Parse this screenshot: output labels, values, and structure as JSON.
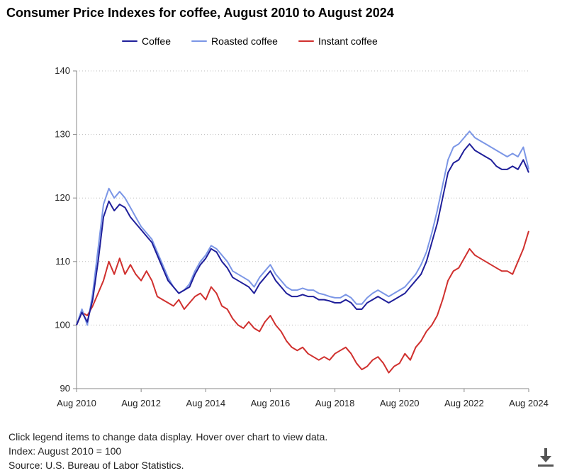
{
  "title": "Consumer Price Indexes for coffee, August 2010 to August 2024",
  "footer": {
    "line1": "Click legend items to change data display. Hover over chart to view data.",
    "line2": "Index: August 2010 = 100",
    "line3": "Source: U.S. Bureau of Labor Statistics."
  },
  "icons": {
    "download": "download-icon"
  },
  "chart_data": {
    "type": "line",
    "title": "Consumer Price Indexes for coffee, August 2010 to August 2024",
    "xlabel": "",
    "ylabel": "",
    "x_ticks": [
      "Aug 2010",
      "Aug 2012",
      "Aug 2014",
      "Aug 2016",
      "Aug 2018",
      "Aug 2020",
      "Aug 2022",
      "Aug 2024"
    ],
    "y_ticks": [
      90,
      100,
      110,
      120,
      130,
      140
    ],
    "xlim": [
      "2010-08",
      "2024-08"
    ],
    "ylim": [
      90,
      140
    ],
    "grid": "horizontal dotted",
    "legend": "top-center",
    "series": [
      {
        "name": "Coffee",
        "color": "#1f1f9a",
        "points": [
          [
            "2010-08",
            100.0
          ],
          [
            "2010-10",
            102.0
          ],
          [
            "2010-12",
            100.5
          ],
          [
            "2011-02",
            104.0
          ],
          [
            "2011-04",
            110.0
          ],
          [
            "2011-06",
            117.0
          ],
          [
            "2011-08",
            119.5
          ],
          [
            "2011-10",
            118.0
          ],
          [
            "2011-12",
            119.0
          ],
          [
            "2012-02",
            118.5
          ],
          [
            "2012-04",
            117.0
          ],
          [
            "2012-06",
            116.0
          ],
          [
            "2012-08",
            115.0
          ],
          [
            "2012-10",
            114.0
          ],
          [
            "2012-12",
            113.0
          ],
          [
            "2013-02",
            111.0
          ],
          [
            "2013-04",
            109.0
          ],
          [
            "2013-06",
            107.0
          ],
          [
            "2013-08",
            106.0
          ],
          [
            "2013-10",
            105.0
          ],
          [
            "2013-12",
            105.5
          ],
          [
            "2014-02",
            106.0
          ],
          [
            "2014-04",
            108.0
          ],
          [
            "2014-06",
            109.5
          ],
          [
            "2014-08",
            110.5
          ],
          [
            "2014-10",
            112.0
          ],
          [
            "2014-12",
            111.5
          ],
          [
            "2015-02",
            110.0
          ],
          [
            "2015-04",
            109.0
          ],
          [
            "2015-06",
            107.5
          ],
          [
            "2015-08",
            107.0
          ],
          [
            "2015-10",
            106.5
          ],
          [
            "2015-12",
            106.0
          ],
          [
            "2016-02",
            105.0
          ],
          [
            "2016-04",
            106.5
          ],
          [
            "2016-06",
            107.5
          ],
          [
            "2016-08",
            108.5
          ],
          [
            "2016-10",
            107.0
          ],
          [
            "2016-12",
            106.0
          ],
          [
            "2017-02",
            105.0
          ],
          [
            "2017-04",
            104.5
          ],
          [
            "2017-06",
            104.5
          ],
          [
            "2017-08",
            104.8
          ],
          [
            "2017-10",
            104.5
          ],
          [
            "2017-12",
            104.5
          ],
          [
            "2018-02",
            104.0
          ],
          [
            "2018-04",
            104.0
          ],
          [
            "2018-06",
            103.8
          ],
          [
            "2018-08",
            103.5
          ],
          [
            "2018-10",
            103.5
          ],
          [
            "2018-12",
            104.0
          ],
          [
            "2019-02",
            103.5
          ],
          [
            "2019-04",
            102.5
          ],
          [
            "2019-06",
            102.5
          ],
          [
            "2019-08",
            103.5
          ],
          [
            "2019-10",
            104.0
          ],
          [
            "2019-12",
            104.5
          ],
          [
            "2020-02",
            104.0
          ],
          [
            "2020-04",
            103.5
          ],
          [
            "2020-06",
            104.0
          ],
          [
            "2020-08",
            104.5
          ],
          [
            "2020-10",
            105.0
          ],
          [
            "2020-12",
            106.0
          ],
          [
            "2021-02",
            107.0
          ],
          [
            "2021-04",
            108.0
          ],
          [
            "2021-06",
            110.0
          ],
          [
            "2021-08",
            113.0
          ],
          [
            "2021-10",
            116.0
          ],
          [
            "2021-12",
            120.0
          ],
          [
            "2022-02",
            124.0
          ],
          [
            "2022-04",
            125.5
          ],
          [
            "2022-06",
            126.0
          ],
          [
            "2022-08",
            127.5
          ],
          [
            "2022-10",
            128.5
          ],
          [
            "2022-12",
            127.5
          ],
          [
            "2023-02",
            127.0
          ],
          [
            "2023-04",
            126.5
          ],
          [
            "2023-06",
            126.0
          ],
          [
            "2023-08",
            125.0
          ],
          [
            "2023-10",
            124.5
          ],
          [
            "2023-12",
            124.5
          ],
          [
            "2024-02",
            125.0
          ],
          [
            "2024-04",
            124.5
          ],
          [
            "2024-06",
            126.0
          ],
          [
            "2024-08",
            124.0
          ]
        ]
      },
      {
        "name": "Roasted coffee",
        "color": "#7b96e6",
        "points": [
          [
            "2010-08",
            100.0
          ],
          [
            "2010-10",
            102.5
          ],
          [
            "2010-12",
            100.0
          ],
          [
            "2011-02",
            105.0
          ],
          [
            "2011-04",
            112.0
          ],
          [
            "2011-06",
            119.0
          ],
          [
            "2011-08",
            121.5
          ],
          [
            "2011-10",
            120.0
          ],
          [
            "2011-12",
            121.0
          ],
          [
            "2012-02",
            120.0
          ],
          [
            "2012-04",
            118.5
          ],
          [
            "2012-06",
            117.0
          ],
          [
            "2012-08",
            115.5
          ],
          [
            "2012-10",
            114.5
          ],
          [
            "2012-12",
            113.5
          ],
          [
            "2013-02",
            111.5
          ],
          [
            "2013-04",
            109.5
          ],
          [
            "2013-06",
            107.5
          ],
          [
            "2013-08",
            106.0
          ],
          [
            "2013-10",
            105.0
          ],
          [
            "2013-12",
            105.5
          ],
          [
            "2014-02",
            106.5
          ],
          [
            "2014-04",
            108.5
          ],
          [
            "2014-06",
            110.0
          ],
          [
            "2014-08",
            111.0
          ],
          [
            "2014-10",
            112.5
          ],
          [
            "2014-12",
            112.0
          ],
          [
            "2015-02",
            111.0
          ],
          [
            "2015-04",
            110.0
          ],
          [
            "2015-06",
            108.5
          ],
          [
            "2015-08",
            108.0
          ],
          [
            "2015-10",
            107.5
          ],
          [
            "2015-12",
            107.0
          ],
          [
            "2016-02",
            106.0
          ],
          [
            "2016-04",
            107.5
          ],
          [
            "2016-06",
            108.5
          ],
          [
            "2016-08",
            109.5
          ],
          [
            "2016-10",
            108.0
          ],
          [
            "2016-12",
            107.0
          ],
          [
            "2017-02",
            106.0
          ],
          [
            "2017-04",
            105.5
          ],
          [
            "2017-06",
            105.5
          ],
          [
            "2017-08",
            105.8
          ],
          [
            "2017-10",
            105.5
          ],
          [
            "2017-12",
            105.5
          ],
          [
            "2018-02",
            105.0
          ],
          [
            "2018-04",
            104.8
          ],
          [
            "2018-06",
            104.5
          ],
          [
            "2018-08",
            104.3
          ],
          [
            "2018-10",
            104.3
          ],
          [
            "2018-12",
            104.8
          ],
          [
            "2019-02",
            104.3
          ],
          [
            "2019-04",
            103.3
          ],
          [
            "2019-06",
            103.3
          ],
          [
            "2019-08",
            104.3
          ],
          [
            "2019-10",
            105.0
          ],
          [
            "2019-12",
            105.5
          ],
          [
            "2020-02",
            105.0
          ],
          [
            "2020-04",
            104.5
          ],
          [
            "2020-06",
            105.0
          ],
          [
            "2020-08",
            105.5
          ],
          [
            "2020-10",
            106.0
          ],
          [
            "2020-12",
            107.0
          ],
          [
            "2021-02",
            108.0
          ],
          [
            "2021-04",
            109.5
          ],
          [
            "2021-06",
            111.5
          ],
          [
            "2021-08",
            114.5
          ],
          [
            "2021-10",
            118.0
          ],
          [
            "2021-12",
            122.0
          ],
          [
            "2022-02",
            126.0
          ],
          [
            "2022-04",
            128.0
          ],
          [
            "2022-06",
            128.5
          ],
          [
            "2022-08",
            129.5
          ],
          [
            "2022-10",
            130.5
          ],
          [
            "2022-12",
            129.5
          ],
          [
            "2023-02",
            129.0
          ],
          [
            "2023-04",
            128.5
          ],
          [
            "2023-06",
            128.0
          ],
          [
            "2023-08",
            127.5
          ],
          [
            "2023-10",
            127.0
          ],
          [
            "2023-12",
            126.5
          ],
          [
            "2024-02",
            127.0
          ],
          [
            "2024-04",
            126.5
          ],
          [
            "2024-06",
            128.0
          ],
          [
            "2024-08",
            124.5
          ]
        ]
      },
      {
        "name": "Instant coffee",
        "color": "#d0302e",
        "points": [
          [
            "2010-08",
            100.0
          ],
          [
            "2010-10",
            102.0
          ],
          [
            "2010-12",
            101.5
          ],
          [
            "2011-02",
            103.0
          ],
          [
            "2011-04",
            105.0
          ],
          [
            "2011-06",
            107.0
          ],
          [
            "2011-08",
            110.0
          ],
          [
            "2011-10",
            108.0
          ],
          [
            "2011-12",
            110.5
          ],
          [
            "2012-02",
            108.0
          ],
          [
            "2012-04",
            109.5
          ],
          [
            "2012-06",
            108.0
          ],
          [
            "2012-08",
            107.0
          ],
          [
            "2012-10",
            108.5
          ],
          [
            "2012-12",
            107.0
          ],
          [
            "2013-02",
            104.5
          ],
          [
            "2013-04",
            104.0
          ],
          [
            "2013-06",
            103.5
          ],
          [
            "2013-08",
            103.0
          ],
          [
            "2013-10",
            104.0
          ],
          [
            "2013-12",
            102.5
          ],
          [
            "2014-02",
            103.5
          ],
          [
            "2014-04",
            104.5
          ],
          [
            "2014-06",
            105.0
          ],
          [
            "2014-08",
            104.0
          ],
          [
            "2014-10",
            106.0
          ],
          [
            "2014-12",
            105.0
          ],
          [
            "2015-02",
            103.0
          ],
          [
            "2015-04",
            102.5
          ],
          [
            "2015-06",
            101.0
          ],
          [
            "2015-08",
            100.0
          ],
          [
            "2015-10",
            99.5
          ],
          [
            "2015-12",
            100.5
          ],
          [
            "2016-02",
            99.5
          ],
          [
            "2016-04",
            99.0
          ],
          [
            "2016-06",
            100.5
          ],
          [
            "2016-08",
            101.5
          ],
          [
            "2016-10",
            100.0
          ],
          [
            "2016-12",
            99.0
          ],
          [
            "2017-02",
            97.5
          ],
          [
            "2017-04",
            96.5
          ],
          [
            "2017-06",
            96.0
          ],
          [
            "2017-08",
            96.5
          ],
          [
            "2017-10",
            95.5
          ],
          [
            "2017-12",
            95.0
          ],
          [
            "2018-02",
            94.5
          ],
          [
            "2018-04",
            95.0
          ],
          [
            "2018-06",
            94.5
          ],
          [
            "2018-08",
            95.5
          ],
          [
            "2018-10",
            96.0
          ],
          [
            "2018-12",
            96.5
          ],
          [
            "2019-02",
            95.5
          ],
          [
            "2019-04",
            94.0
          ],
          [
            "2019-06",
            93.0
          ],
          [
            "2019-08",
            93.5
          ],
          [
            "2019-10",
            94.5
          ],
          [
            "2019-12",
            95.0
          ],
          [
            "2020-02",
            94.0
          ],
          [
            "2020-04",
            92.5
          ],
          [
            "2020-06",
            93.5
          ],
          [
            "2020-08",
            94.0
          ],
          [
            "2020-10",
            95.5
          ],
          [
            "2020-12",
            94.5
          ],
          [
            "2021-02",
            96.5
          ],
          [
            "2021-04",
            97.5
          ],
          [
            "2021-06",
            99.0
          ],
          [
            "2021-08",
            100.0
          ],
          [
            "2021-10",
            101.5
          ],
          [
            "2021-12",
            104.0
          ],
          [
            "2022-02",
            107.0
          ],
          [
            "2022-04",
            108.5
          ],
          [
            "2022-06",
            109.0
          ],
          [
            "2022-08",
            110.5
          ],
          [
            "2022-10",
            112.0
          ],
          [
            "2022-12",
            111.0
          ],
          [
            "2023-02",
            110.5
          ],
          [
            "2023-04",
            110.0
          ],
          [
            "2023-06",
            109.5
          ],
          [
            "2023-08",
            109.0
          ],
          [
            "2023-10",
            108.5
          ],
          [
            "2023-12",
            108.5
          ],
          [
            "2024-02",
            108.0
          ],
          [
            "2024-04",
            110.0
          ],
          [
            "2024-06",
            112.0
          ],
          [
            "2024-08",
            114.8
          ]
        ]
      }
    ]
  }
}
